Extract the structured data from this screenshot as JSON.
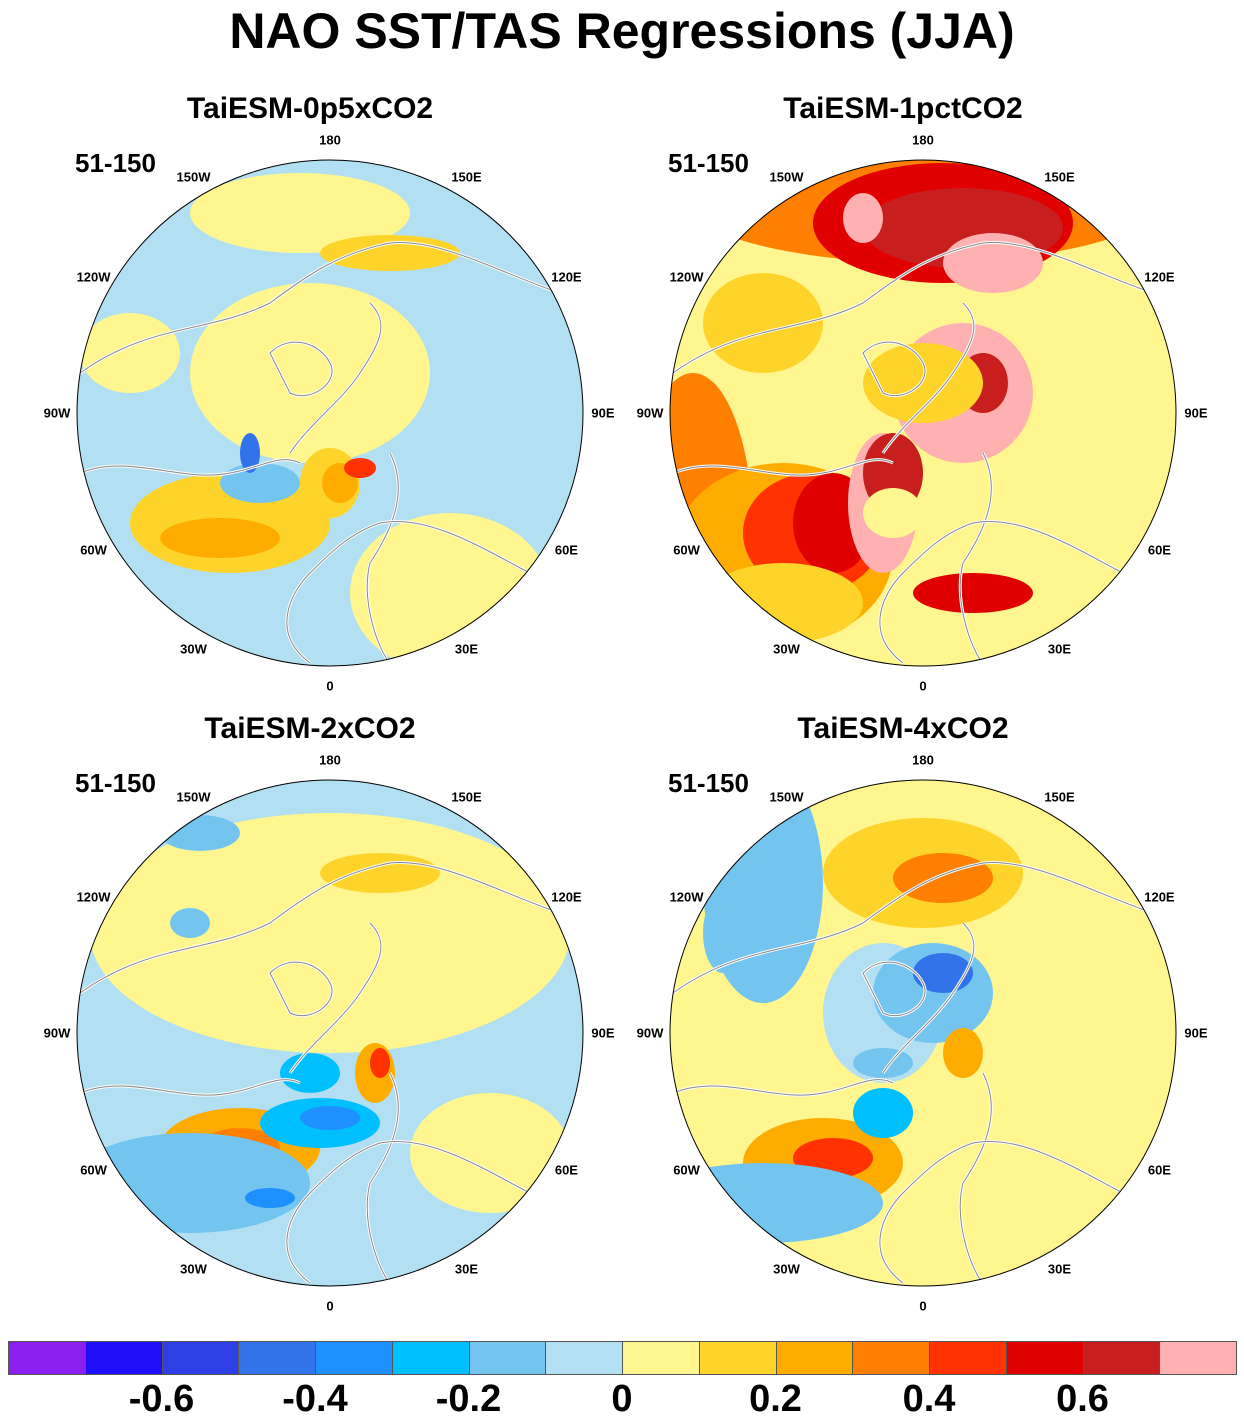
{
  "title": "NAO SST/TAS Regressions (JJA)",
  "palette": {
    "vneg4": "#8a1ff0",
    "vneg3": "#1e0ff8",
    "vneg2": "#2e3fe6",
    "vneg1": "#3373ea",
    "neg4": "#1e90ff",
    "neg3": "#00bfff",
    "neg2": "#73c5f0",
    "neg1": "#b3dff2",
    "pos1": "#fff68f",
    "pos2": "#ffd42a",
    "pos3": "#ffac00",
    "pos4": "#ff7f00",
    "pos5": "#ff3200",
    "pos6": "#e00000",
    "pos7": "#c81e1e",
    "pos8": "#ffb0b0",
    "land_outline": "#888888"
  },
  "longitude_labels": [
    "180",
    "150E",
    "120E",
    "90E",
    "60E",
    "30E",
    "0",
    "30W",
    "60W",
    "90W",
    "120W",
    "150W"
  ],
  "panels": [
    {
      "title": "TaiESM-0p5xCO2",
      "period": "51-150",
      "background": "neg1"
    },
    {
      "title": "TaiESM-1pctCO2",
      "period": "51-150",
      "background": "pos1"
    },
    {
      "title": "TaiESM-2xCO2",
      "period": "51-150",
      "background": "neg1"
    },
    {
      "title": "TaiESM-4xCO2",
      "period": "51-150",
      "background": "pos1"
    }
  ],
  "colorbar": {
    "colors": [
      "vneg4",
      "vneg3",
      "vneg2",
      "vneg1",
      "neg4",
      "neg3",
      "neg2",
      "neg1",
      "pos1",
      "pos2",
      "pos3",
      "pos4",
      "pos5",
      "pos6",
      "pos7",
      "pos8"
    ],
    "tick_labels": [
      "-0.6",
      "-0.4",
      "-0.2",
      "0",
      "0.2",
      "0.4",
      "0.6"
    ]
  }
}
